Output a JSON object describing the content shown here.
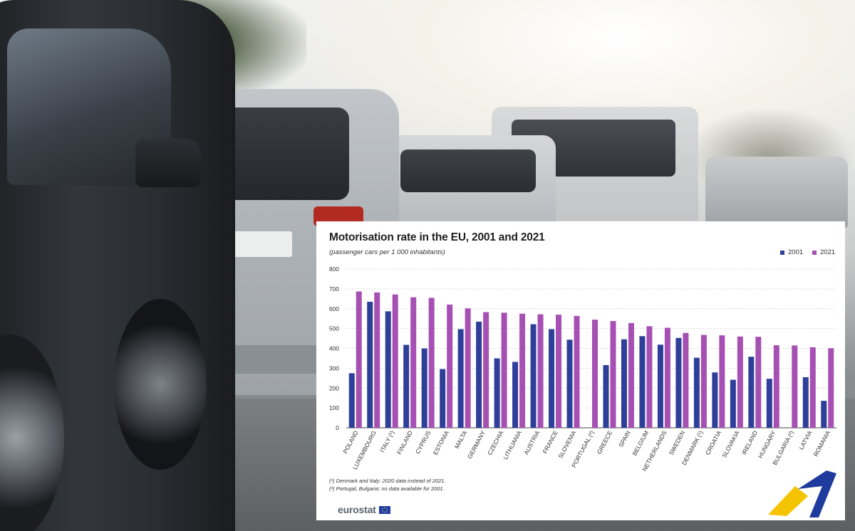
{
  "chart_data": {
    "type": "bar",
    "title": "Motorisation rate in the EU, 2001 and 2021",
    "subtitle": "(passenger cars per 1 000 inhabitants)",
    "legend_position": "top-right",
    "grid": true,
    "ylim": [
      0,
      800
    ],
    "yticks": [
      0,
      100,
      200,
      300,
      400,
      500,
      600,
      700,
      800
    ],
    "categories": [
      "POLAND",
      "LUXEMBOURG",
      "ITALY (¹)",
      "FINLAND",
      "CYPRUS",
      "ESTONIA",
      "MALTA",
      "GERMANY",
      "CZECHIA",
      "LITHUANIA",
      "AUSTRIA",
      "FRANCE",
      "SLOVENIA",
      "PORTUGAL (²)",
      "GREECE",
      "SPAIN",
      "BELGIUM",
      "NETHERLANDS",
      "SWEDEN",
      "DENMARK (¹)",
      "CROATIA",
      "SLOVAKIA",
      "IRELAND",
      "HUNGARY",
      "BULGARIA (²)",
      "LATVIA",
      "ROMANIA"
    ],
    "series": [
      {
        "name": "2001",
        "color": "#2e3f9a",
        "values": [
          275,
          635,
          587,
          418,
          400,
          296,
          497,
          535,
          350,
          332,
          522,
          497,
          444,
          null,
          316,
          446,
          462,
          419,
          453,
          353,
          279,
          242,
          358,
          247,
          null,
          255,
          136
        ]
      },
      {
        "name": "2021",
        "color": "#a650b4",
        "values": [
          687,
          682,
          672,
          658,
          655,
          621,
          602,
          583,
          580,
          575,
          572,
          570,
          564,
          545,
          538,
          528,
          512,
          504,
          478,
          468,
          466,
          460,
          459,
          416,
          415,
          406,
          401
        ]
      }
    ]
  },
  "footnotes": [
    "(¹) Denmark and Italy: 2020 data instead of 2021.",
    "(²) Portugal, Bulgaria: no data available for 2001."
  ],
  "brand": {
    "name": "eurostat",
    "accent_yellow": "#f5c400",
    "accent_blue": "#1f3b9e"
  }
}
